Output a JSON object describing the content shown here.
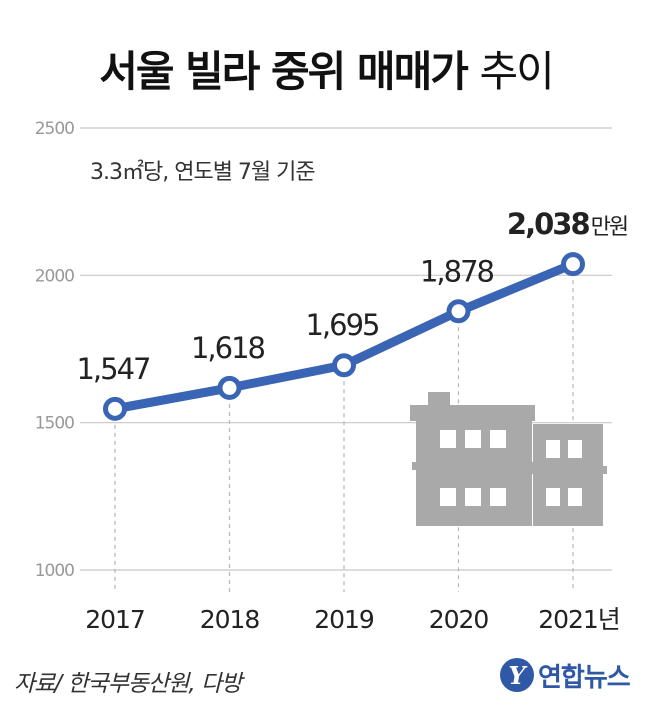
{
  "title": {
    "main": "서울 빌라 중위 매매가",
    "suffix": "추이"
  },
  "colors": {
    "line": "#3a64b4",
    "grid": "#c8c8c8",
    "building": "#a9a9a9",
    "building_dark": "#8a8a8a"
  },
  "chart_data": {
    "type": "line",
    "subtitle": "3.3㎡당, 연도별 7월 기준",
    "x": [
      "2017",
      "2018",
      "2019",
      "2020",
      "2021"
    ],
    "x_tick_labels": [
      "2017",
      "2018",
      "2019",
      "2020",
      "2021년"
    ],
    "series": [
      {
        "values": [
          1547,
          1618,
          1695,
          1878,
          2038
        ]
      }
    ],
    "data_labels": [
      "1,547",
      "1,618",
      "1,695",
      "1,878",
      "2,038"
    ],
    "last_label_unit": "만원",
    "y_ticks": [
      "2500",
      "2000",
      "1500",
      "1000"
    ],
    "ylim": [
      1000,
      2500
    ],
    "grid": true
  },
  "footer": {
    "source": "자료/ 한국부동산원, 다방",
    "brand_mark": "Y",
    "brand": "연합뉴스"
  }
}
